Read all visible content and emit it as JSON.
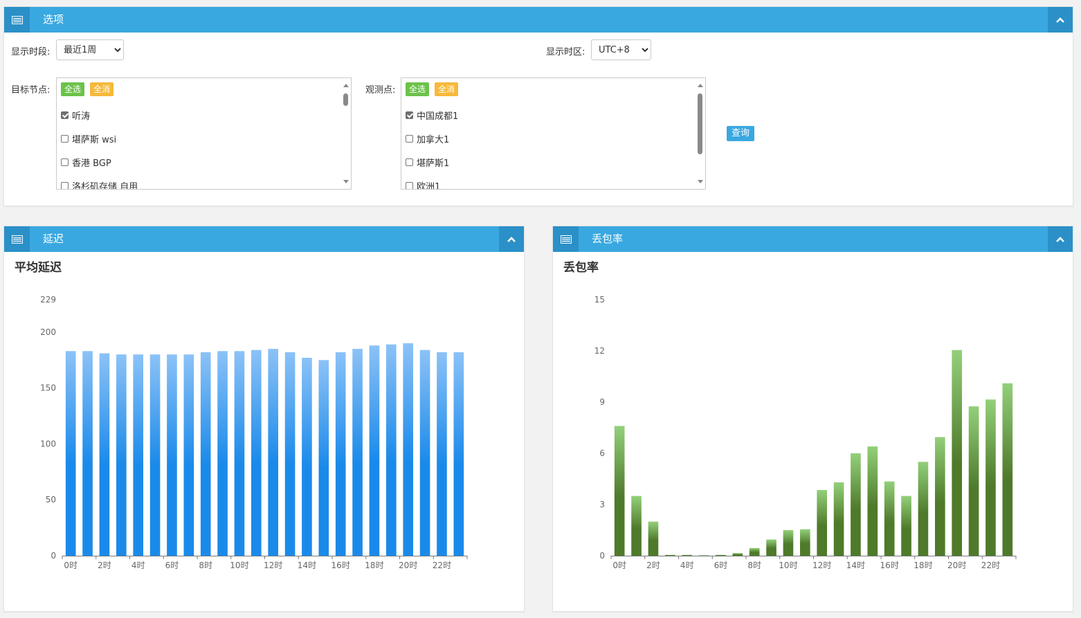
{
  "options_panel": {
    "title": "选项",
    "period_label": "显示时段:",
    "period_value": "最近1周",
    "timezone_label": "显示时区:",
    "timezone_value": "UTC+8",
    "target_label": "目标节点:",
    "observer_label": "观测点:",
    "select_all": "全选",
    "deselect_all": "全消",
    "targets": [
      {
        "label": "听涛",
        "checked": true
      },
      {
        "label": "堪萨斯 wsi",
        "checked": false
      },
      {
        "label": "香港 BGP",
        "checked": false
      },
      {
        "label": "洛杉矶存储 自用",
        "checked": false
      }
    ],
    "observers": [
      {
        "label": "中国成都1",
        "checked": true
      },
      {
        "label": "加拿大1",
        "checked": false
      },
      {
        "label": "堪萨斯1",
        "checked": false
      },
      {
        "label": "欧洲1",
        "checked": false
      }
    ],
    "query_label": "查询"
  },
  "latency_panel": {
    "header": "延迟",
    "chart_title": "平均延迟"
  },
  "loss_panel": {
    "header": "丢包率",
    "chart_title": "丢包率"
  },
  "colors": {
    "header": "#3aa8e0",
    "latency_bar_top": "#8cc2f7",
    "latency_bar_bottom": "#1a8aea",
    "loss_bar_top": "#93d07a",
    "loss_bar_bottom": "#4e7a2a"
  },
  "chart_data": [
    {
      "type": "bar",
      "title": "平均延迟",
      "categories": [
        "0时",
        "1时",
        "2时",
        "3时",
        "4时",
        "5时",
        "6时",
        "7时",
        "8时",
        "9时",
        "10时",
        "11时",
        "12时",
        "13时",
        "14时",
        "15时",
        "16时",
        "17时",
        "18时",
        "19时",
        "20时",
        "21时",
        "22时",
        "23时"
      ],
      "tick_labels": [
        "0时",
        "2时",
        "4时",
        "6时",
        "8时",
        "10时",
        "12时",
        "14时",
        "16时",
        "18时",
        "20时",
        "22时"
      ],
      "values": [
        183,
        183,
        181,
        180,
        180,
        180,
        180,
        180,
        182,
        183,
        183,
        184,
        185,
        182,
        177,
        175,
        182,
        185,
        188,
        189,
        190,
        184,
        182,
        182
      ],
      "yticks": [
        0,
        50,
        100,
        150,
        200,
        229
      ],
      "ylim": [
        0,
        229
      ]
    },
    {
      "type": "bar",
      "title": "丢包率",
      "categories": [
        "0时",
        "1时",
        "2时",
        "3时",
        "4时",
        "5时",
        "6时",
        "7时",
        "8时",
        "9时",
        "10时",
        "11时",
        "12时",
        "13时",
        "14时",
        "15时",
        "16时",
        "17时",
        "18时",
        "19时",
        "20时",
        "21时",
        "22时",
        "23时"
      ],
      "tick_labels": [
        "0时",
        "2时",
        "4时",
        "6时",
        "8时",
        "10时",
        "12时",
        "14时",
        "16时",
        "18时",
        "20时",
        "22时"
      ],
      "values": [
        7.6,
        3.5,
        2.0,
        0.05,
        0.05,
        0.02,
        0.05,
        0.15,
        0.45,
        0.95,
        1.5,
        1.55,
        3.85,
        4.3,
        6.0,
        6.4,
        4.35,
        3.5,
        5.5,
        6.95,
        12.05,
        8.75,
        9.15,
        10.1
      ],
      "yticks": [
        0,
        3,
        6,
        9,
        12,
        15
      ],
      "ylim": [
        0,
        15
      ]
    }
  ]
}
